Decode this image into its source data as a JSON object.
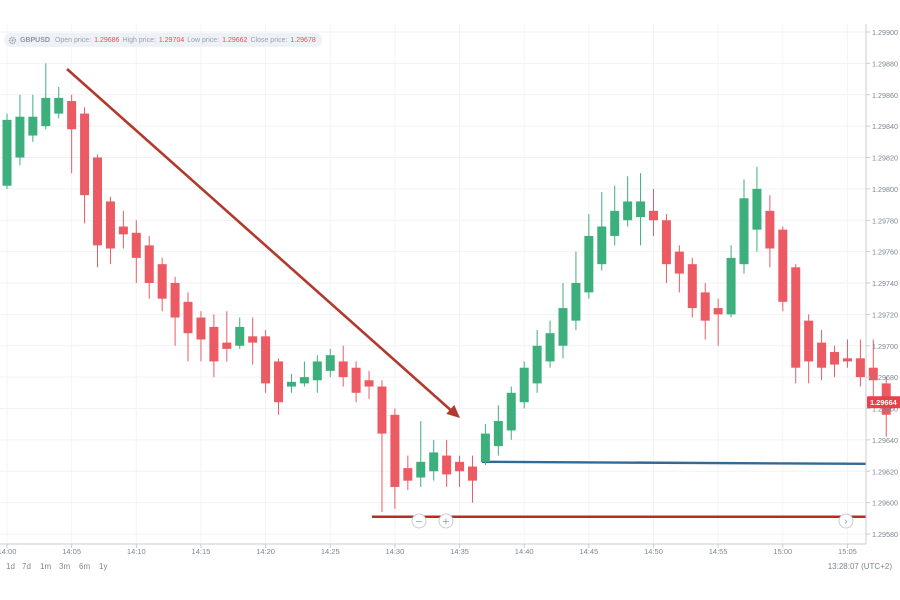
{
  "info": {
    "symbol": "GBPUSD",
    "open_label": "Open price:",
    "open_value": "1.29686",
    "high_label": "High price:",
    "high_value": "1.29704",
    "low_label": "Low price:",
    "low_value": "1.29662",
    "close_label": "Close price:",
    "close_value": "1.29678"
  },
  "ranges": [
    "1d",
    "7d",
    "1m",
    "3m",
    "6m",
    "1y"
  ],
  "clock": "13:28:07 (UTC+2)",
  "colors": {
    "up": "#3daf7d",
    "down": "#ec5a64",
    "arrow": "#b03a2e",
    "support_blue": "#336a94",
    "support_red": "#b52d26",
    "price_tag": "#e8414d"
  },
  "nav_icons": [
    "zoom-out-icon",
    "zoom-in-icon",
    "next-icon"
  ],
  "chart_data": {
    "type": "candlestick",
    "title": "",
    "ylim": [
      1.2958,
      1.299
    ],
    "y_ticks": [
      "1.29900",
      "1.29880",
      "1.29860",
      "1.29840",
      "1.29820",
      "1.29800",
      "1.29780",
      "1.29760",
      "1.29740",
      "1.29720",
      "1.29700",
      "1.29680",
      "1.29660",
      "1.29640",
      "1.29620",
      "1.29600",
      "1.29580"
    ],
    "x_ticks": [
      "14:00",
      "14:05",
      "14:10",
      "14:15",
      "14:20",
      "14:25",
      "14:30",
      "14:35",
      "14:40",
      "14:45",
      "14:50",
      "14:55",
      "15:00",
      "15:05"
    ],
    "current_price": "1.29664",
    "candles": [
      {
        "t": "14:00",
        "o": 1.29802,
        "h": 1.29848,
        "l": 1.298,
        "c": 1.29844
      },
      {
        "t": "14:01",
        "o": 1.2982,
        "h": 1.2986,
        "l": 1.29815,
        "c": 1.29846
      },
      {
        "t": "14:02",
        "o": 1.29834,
        "h": 1.2986,
        "l": 1.2983,
        "c": 1.29846
      },
      {
        "t": "14:03",
        "o": 1.2984,
        "h": 1.2988,
        "l": 1.29838,
        "c": 1.29858
      },
      {
        "t": "14:04",
        "o": 1.29848,
        "h": 1.29865,
        "l": 1.29845,
        "c": 1.29858
      },
      {
        "t": "14:05",
        "o": 1.29856,
        "h": 1.2986,
        "l": 1.2981,
        "c": 1.29838
      },
      {
        "t": "14:06",
        "o": 1.29848,
        "h": 1.29852,
        "l": 1.29778,
        "c": 1.29796
      },
      {
        "t": "14:07",
        "o": 1.2982,
        "h": 1.29822,
        "l": 1.2975,
        "c": 1.29764
      },
      {
        "t": "14:08",
        "o": 1.29792,
        "h": 1.29795,
        "l": 1.29752,
        "c": 1.29762
      },
      {
        "t": "14:09",
        "o": 1.29776,
        "h": 1.29786,
        "l": 1.29762,
        "c": 1.29771
      },
      {
        "t": "14:10",
        "o": 1.29772,
        "h": 1.2978,
        "l": 1.2974,
        "c": 1.29756
      },
      {
        "t": "14:11",
        "o": 1.29764,
        "h": 1.2977,
        "l": 1.2973,
        "c": 1.2974
      },
      {
        "t": "14:12",
        "o": 1.29752,
        "h": 1.29756,
        "l": 1.29722,
        "c": 1.2973
      },
      {
        "t": "14:13",
        "o": 1.2974,
        "h": 1.29744,
        "l": 1.297,
        "c": 1.29718
      },
      {
        "t": "14:14",
        "o": 1.29728,
        "h": 1.29734,
        "l": 1.2969,
        "c": 1.29708
      },
      {
        "t": "14:15",
        "o": 1.29718,
        "h": 1.29722,
        "l": 1.2969,
        "c": 1.29704
      },
      {
        "t": "14:16",
        "o": 1.29712,
        "h": 1.2972,
        "l": 1.2968,
        "c": 1.2969
      },
      {
        "t": "14:17",
        "o": 1.29702,
        "h": 1.29722,
        "l": 1.2969,
        "c": 1.29698
      },
      {
        "t": "14:18",
        "o": 1.297,
        "h": 1.29718,
        "l": 1.29698,
        "c": 1.29712
      },
      {
        "t": "14:19",
        "o": 1.29706,
        "h": 1.29718,
        "l": 1.29688,
        "c": 1.29702
      },
      {
        "t": "14:20",
        "o": 1.29706,
        "h": 1.2971,
        "l": 1.2967,
        "c": 1.29676
      },
      {
        "t": "14:21",
        "o": 1.2969,
        "h": 1.29692,
        "l": 1.29656,
        "c": 1.29664
      },
      {
        "t": "14:22",
        "o": 1.29674,
        "h": 1.29682,
        "l": 1.2967,
        "c": 1.29677
      },
      {
        "t": "14:23",
        "o": 1.29676,
        "h": 1.2969,
        "l": 1.29674,
        "c": 1.2968
      },
      {
        "t": "14:24",
        "o": 1.29678,
        "h": 1.29694,
        "l": 1.2967,
        "c": 1.2969
      },
      {
        "t": "14:25",
        "o": 1.29684,
        "h": 1.29698,
        "l": 1.2968,
        "c": 1.29694
      },
      {
        "t": "14:26",
        "o": 1.2969,
        "h": 1.297,
        "l": 1.29674,
        "c": 1.2968
      },
      {
        "t": "14:27",
        "o": 1.29686,
        "h": 1.2969,
        "l": 1.29664,
        "c": 1.2967
      },
      {
        "t": "14:28",
        "o": 1.29678,
        "h": 1.29684,
        "l": 1.29666,
        "c": 1.29674
      },
      {
        "t": "14:29",
        "o": 1.29674,
        "h": 1.29678,
        "l": 1.29594,
        "c": 1.29644
      },
      {
        "t": "14:30",
        "o": 1.29656,
        "h": 1.2966,
        "l": 1.29596,
        "c": 1.2961
      },
      {
        "t": "14:31",
        "o": 1.29622,
        "h": 1.2963,
        "l": 1.29608,
        "c": 1.29614
      },
      {
        "t": "14:32",
        "o": 1.29616,
        "h": 1.29652,
        "l": 1.2961,
        "c": 1.29626
      },
      {
        "t": "14:33",
        "o": 1.2962,
        "h": 1.2964,
        "l": 1.29614,
        "c": 1.29632
      },
      {
        "t": "14:34",
        "o": 1.2963,
        "h": 1.2964,
        "l": 1.2961,
        "c": 1.29618
      },
      {
        "t": "14:35",
        "o": 1.29626,
        "h": 1.2963,
        "l": 1.2961,
        "c": 1.2962
      },
      {
        "t": "14:36",
        "o": 1.29623,
        "h": 1.2963,
        "l": 1.296,
        "c": 1.29614
      },
      {
        "t": "14:37",
        "o": 1.29626,
        "h": 1.2965,
        "l": 1.29624,
        "c": 1.29644
      },
      {
        "t": "14:38",
        "o": 1.29636,
        "h": 1.29662,
        "l": 1.2963,
        "c": 1.29652
      },
      {
        "t": "14:39",
        "o": 1.29646,
        "h": 1.29674,
        "l": 1.2964,
        "c": 1.2967
      },
      {
        "t": "14:40",
        "o": 1.29664,
        "h": 1.2969,
        "l": 1.2966,
        "c": 1.29686
      },
      {
        "t": "14:41",
        "o": 1.29676,
        "h": 1.2971,
        "l": 1.2967,
        "c": 1.297
      },
      {
        "t": "14:42",
        "o": 1.2969,
        "h": 1.29716,
        "l": 1.29686,
        "c": 1.29708
      },
      {
        "t": "14:43",
        "o": 1.297,
        "h": 1.2974,
        "l": 1.29692,
        "c": 1.29724
      },
      {
        "t": "14:44",
        "o": 1.29716,
        "h": 1.2976,
        "l": 1.2971,
        "c": 1.2974
      },
      {
        "t": "14:45",
        "o": 1.29734,
        "h": 1.29784,
        "l": 1.2973,
        "c": 1.2977
      },
      {
        "t": "14:46",
        "o": 1.29752,
        "h": 1.29798,
        "l": 1.29748,
        "c": 1.29776
      },
      {
        "t": "14:47",
        "o": 1.2977,
        "h": 1.29802,
        "l": 1.29764,
        "c": 1.29786
      },
      {
        "t": "14:48",
        "o": 1.2978,
        "h": 1.29808,
        "l": 1.29776,
        "c": 1.29792
      },
      {
        "t": "14:49",
        "o": 1.29782,
        "h": 1.2981,
        "l": 1.29764,
        "c": 1.29792
      },
      {
        "t": "14:50",
        "o": 1.29786,
        "h": 1.298,
        "l": 1.2977,
        "c": 1.2978
      },
      {
        "t": "14:51",
        "o": 1.2978,
        "h": 1.29784,
        "l": 1.2974,
        "c": 1.29752
      },
      {
        "t": "14:52",
        "o": 1.2976,
        "h": 1.29764,
        "l": 1.29734,
        "c": 1.29746
      },
      {
        "t": "14:53",
        "o": 1.29752,
        "h": 1.29756,
        "l": 1.29718,
        "c": 1.29724
      },
      {
        "t": "14:54",
        "o": 1.29734,
        "h": 1.2974,
        "l": 1.29704,
        "c": 1.29716
      },
      {
        "t": "14:55",
        "o": 1.29724,
        "h": 1.2973,
        "l": 1.297,
        "c": 1.2972
      },
      {
        "t": "14:56",
        "o": 1.2972,
        "h": 1.29764,
        "l": 1.29718,
        "c": 1.29756
      },
      {
        "t": "14:57",
        "o": 1.29752,
        "h": 1.29806,
        "l": 1.29746,
        "c": 1.29794
      },
      {
        "t": "14:58",
        "o": 1.29774,
        "h": 1.29814,
        "l": 1.2976,
        "c": 1.298
      },
      {
        "t": "14:59",
        "o": 1.29786,
        "h": 1.29796,
        "l": 1.2975,
        "c": 1.29762
      },
      {
        "t": "15:00",
        "o": 1.29774,
        "h": 1.29776,
        "l": 1.29722,
        "c": 1.29728
      },
      {
        "t": "15:01",
        "o": 1.2975,
        "h": 1.29752,
        "l": 1.29676,
        "c": 1.29686
      },
      {
        "t": "15:02",
        "o": 1.29716,
        "h": 1.2972,
        "l": 1.29676,
        "c": 1.2969
      },
      {
        "t": "15:03",
        "o": 1.29702,
        "h": 1.2971,
        "l": 1.29678,
        "c": 1.29686
      },
      {
        "t": "15:04",
        "o": 1.29696,
        "h": 1.297,
        "l": 1.2968,
        "c": 1.29688
      },
      {
        "t": "15:05",
        "o": 1.29692,
        "h": 1.29704,
        "l": 1.29686,
        "c": 1.2969
      },
      {
        "t": "15:06",
        "o": 1.29692,
        "h": 1.29704,
        "l": 1.29674,
        "c": 1.2968
      },
      {
        "t": "15:07",
        "o": 1.29686,
        "h": 1.29704,
        "l": 1.29662,
        "c": 1.29678
      },
      {
        "t": "15:08",
        "o": 1.29676,
        "h": 1.2968,
        "l": 1.29642,
        "c": 1.29656
      }
    ],
    "support_levels": [
      1.29626,
      1.29591
    ],
    "annotations": [
      "downtrend arrow",
      "support line (blue)",
      "support line (red)"
    ]
  }
}
